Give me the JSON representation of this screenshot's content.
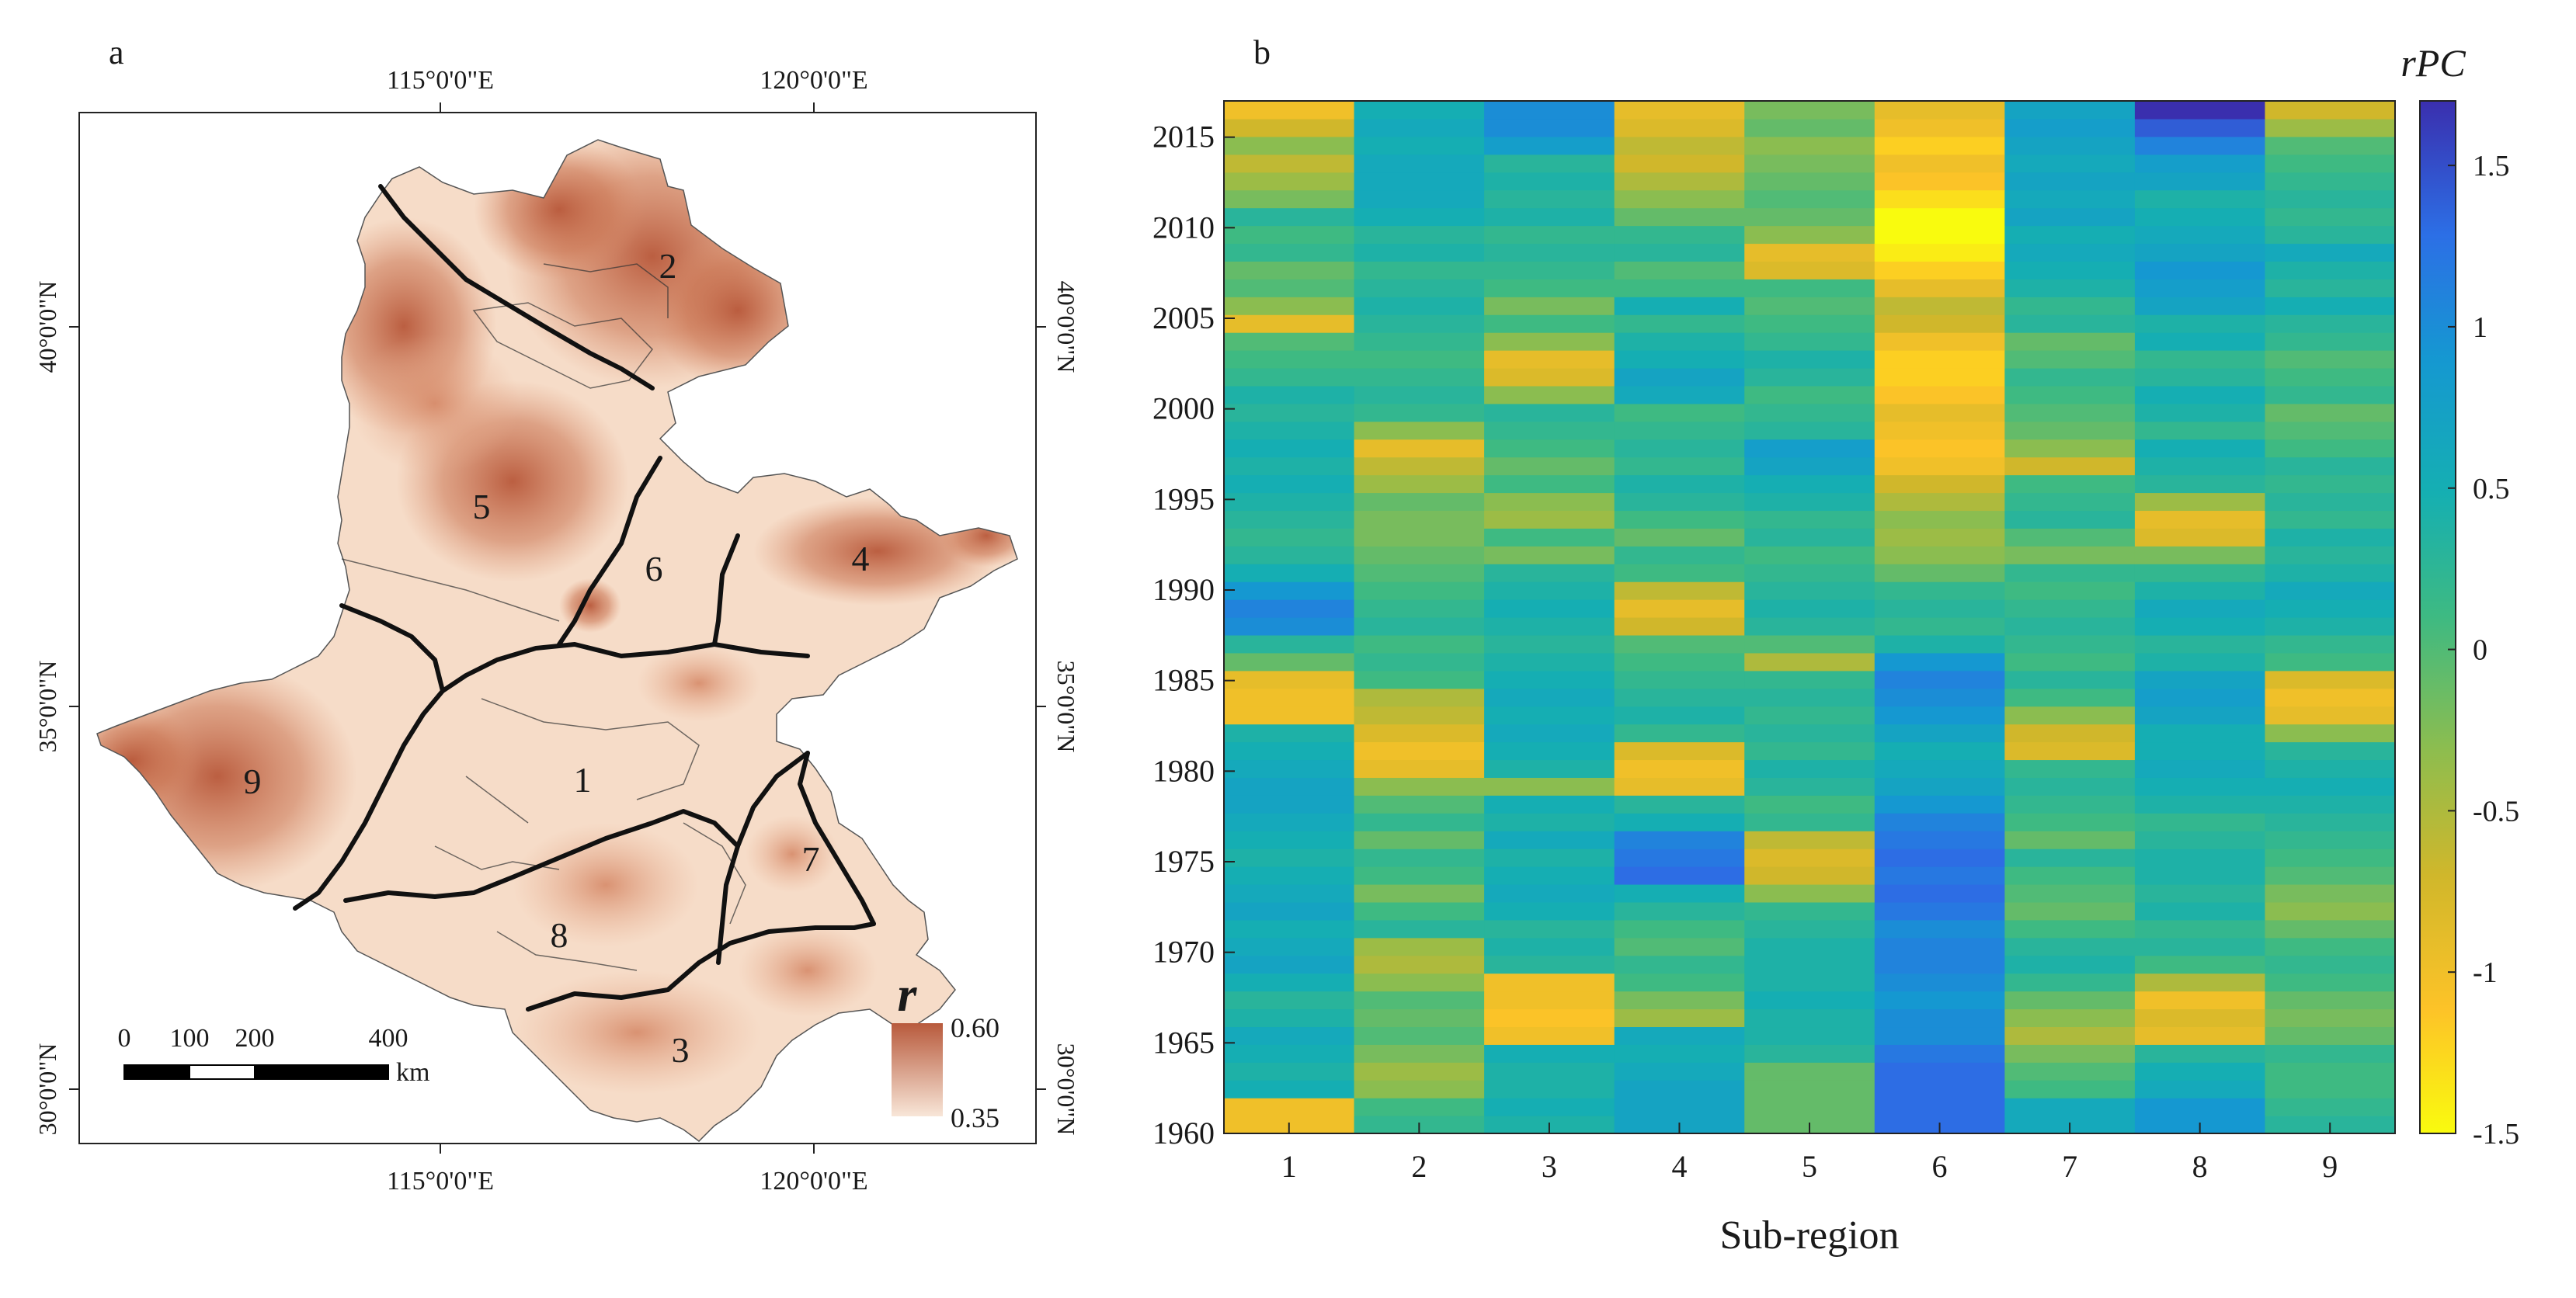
{
  "panel_a": {
    "label": "a",
    "top_lon_labels": [
      "115°0'0\"E",
      "120°0'0\"E"
    ],
    "bottom_lon_labels": [
      "115°0'0\"E",
      "120°0'0\"E"
    ],
    "left_lat_labels": [
      "40°0'0\"N",
      "35°0'0\"N",
      "30°0'0\"N"
    ],
    "right_lat_labels": [
      "40°0'0\"N",
      "35°0'0\"N",
      "30°0'0\"N"
    ],
    "region_labels": [
      "1",
      "2",
      "3",
      "4",
      "5",
      "6",
      "7",
      "8",
      "9"
    ],
    "scale_bar": {
      "ticks": [
        "0",
        "100",
        "200",
        "400"
      ],
      "unit": "km"
    },
    "legend": {
      "symbol": "r",
      "max": "0.60",
      "min": "0.35",
      "color_high": "#b85a3c",
      "color_low": "#f8e6d8"
    },
    "colors": {
      "land_light": "#f7dfcc",
      "land_dark": "#c46a4a",
      "boundary": "#111111"
    }
  },
  "panel_b": {
    "label": "b",
    "colorbar_title": "rPC",
    "xlabel": "Sub-region"
  },
  "chart_data": {
    "type": "heatmap",
    "title": "",
    "xlabel": "Sub-region",
    "ylabel": "",
    "x_categories": [
      "1",
      "2",
      "3",
      "4",
      "5",
      "6",
      "7",
      "8",
      "9"
    ],
    "y_range": [
      1960,
      2017
    ],
    "y_ticks": [
      "1960",
      "1965",
      "1970",
      "1975",
      "1980",
      "1985",
      "1990",
      "1995",
      "2000",
      "2005",
      "2010",
      "2015"
    ],
    "colorbar": {
      "label": "rPC",
      "range": [
        -1.5,
        1.7
      ],
      "ticks": [
        "1.5",
        "1",
        "0.5",
        "0",
        "-0.5",
        "-1",
        "-1.5"
      ],
      "colormap": "parula_reversed"
    },
    "values_note": "annual rPC values 1960-2017, rows are years (ascending), columns sub-regions 1-9",
    "values": [
      [
        -1.0,
        0.2,
        0.4,
        0.7,
        -0.1,
        1.3,
        0.6,
        0.9,
        0.3
      ],
      [
        -1.0,
        0.1,
        0.5,
        0.7,
        -0.1,
        1.3,
        0.6,
        0.9,
        0.2
      ],
      [
        0.5,
        -0.3,
        0.4,
        0.7,
        -0.1,
        1.3,
        0.1,
        0.6,
        0.1
      ],
      [
        0.4,
        -0.4,
        0.4,
        0.6,
        -0.1,
        1.3,
        0.0,
        0.5,
        0.1
      ],
      [
        0.5,
        -0.2,
        0.5,
        0.5,
        0.3,
        1.2,
        -0.2,
        0.3,
        0.2
      ],
      [
        0.6,
        0.0,
        -1.0,
        0.6,
        0.4,
        1.0,
        -0.5,
        -0.9,
        -0.1
      ],
      [
        0.4,
        -0.1,
        -1.1,
        -0.4,
        0.4,
        1.0,
        -0.3,
        -0.8,
        -0.2
      ],
      [
        0.3,
        0.0,
        -1.0,
        -0.2,
        0.5,
        0.9,
        -0.1,
        -1.0,
        -0.1
      ],
      [
        0.5,
        -0.3,
        -1.0,
        0.1,
        0.4,
        1.0,
        0.2,
        -0.5,
        0.1
      ],
      [
        0.7,
        -0.5,
        0.3,
        0.2,
        0.4,
        1.1,
        0.4,
        0.1,
        0.2
      ],
      [
        0.6,
        -0.4,
        0.4,
        0.0,
        0.4,
        1.1,
        0.3,
        0.3,
        0.1
      ],
      [
        0.5,
        0.3,
        0.3,
        0.1,
        0.3,
        1.0,
        0.1,
        0.2,
        -0.1
      ],
      [
        0.7,
        0.1,
        0.5,
        0.3,
        0.2,
        1.2,
        -0.1,
        0.4,
        -0.3
      ],
      [
        0.6,
        -0.2,
        0.6,
        0.5,
        -0.3,
        1.3,
        0.0,
        0.3,
        -0.2
      ],
      [
        0.5,
        0.1,
        0.5,
        1.3,
        -0.7,
        1.2,
        0.1,
        0.4,
        0.0
      ],
      [
        0.4,
        0.2,
        0.4,
        1.2,
        -0.8,
        1.3,
        0.3,
        0.4,
        0.1
      ],
      [
        0.5,
        -0.1,
        0.6,
        1.1,
        -0.6,
        1.2,
        -0.1,
        0.3,
        0.2
      ],
      [
        0.6,
        0.2,
        0.4,
        0.5,
        0.2,
        1.1,
        0.1,
        0.2,
        0.3
      ],
      [
        0.7,
        0.0,
        0.5,
        0.3,
        0.1,
        0.9,
        0.2,
        0.4,
        0.4
      ],
      [
        0.7,
        -0.3,
        -0.3,
        -0.9,
        0.3,
        0.7,
        0.3,
        0.5,
        0.5
      ],
      [
        0.6,
        -0.9,
        0.4,
        -1.0,
        0.4,
        0.6,
        0.2,
        0.6,
        0.4
      ],
      [
        0.5,
        -1.0,
        0.5,
        -0.8,
        0.2,
        0.5,
        -0.8,
        0.5,
        0.3
      ],
      [
        0.4,
        -0.8,
        0.6,
        0.2,
        0.3,
        0.7,
        -0.7,
        0.5,
        -0.3
      ],
      [
        -1.0,
        -0.6,
        0.5,
        0.4,
        0.2,
        0.9,
        -0.3,
        0.7,
        -0.9
      ],
      [
        -1.0,
        -0.5,
        0.6,
        0.3,
        0.3,
        1.0,
        0.1,
        0.8,
        -1.0
      ],
      [
        -0.9,
        0.1,
        0.5,
        0.2,
        0.2,
        1.1,
        0.3,
        0.7,
        -0.8
      ],
      [
        -0.1,
        0.2,
        0.4,
        0.1,
        -0.5,
        0.9,
        0.1,
        0.4,
        0.1
      ],
      [
        0.3,
        0.1,
        0.3,
        0.0,
        0.0,
        0.4,
        0.2,
        0.3,
        0.2
      ],
      [
        1.0,
        0.3,
        0.4,
        -0.7,
        0.3,
        0.2,
        0.3,
        0.5,
        0.4
      ],
      [
        1.1,
        0.2,
        0.5,
        -0.9,
        0.4,
        0.3,
        0.2,
        0.6,
        0.5
      ],
      [
        0.9,
        0.1,
        0.4,
        -0.6,
        0.3,
        0.2,
        0.1,
        0.4,
        0.6
      ],
      [
        0.5,
        0.0,
        0.3,
        0.1,
        0.2,
        -0.1,
        0.2,
        0.2,
        0.4
      ],
      [
        0.3,
        -0.1,
        -0.2,
        0.2,
        0.1,
        -0.3,
        -0.2,
        -0.2,
        0.3
      ],
      [
        0.2,
        -0.2,
        0.1,
        -0.1,
        0.3,
        -0.4,
        0.0,
        -0.8,
        0.4
      ],
      [
        0.3,
        -0.2,
        -0.4,
        0.1,
        0.2,
        -0.3,
        0.3,
        -0.9,
        0.2
      ],
      [
        0.4,
        -0.1,
        -0.3,
        0.3,
        0.4,
        -0.5,
        0.2,
        -0.4,
        0.3
      ],
      [
        0.5,
        -0.4,
        0.1,
        0.4,
        0.5,
        -0.7,
        0.1,
        0.3,
        0.2
      ],
      [
        0.4,
        -0.6,
        -0.1,
        0.2,
        0.7,
        -1.0,
        -0.7,
        0.4,
        0.3
      ],
      [
        0.5,
        -0.9,
        0.1,
        0.3,
        0.8,
        -1.1,
        -0.3,
        0.5,
        0.1
      ],
      [
        0.4,
        -0.3,
        0.2,
        0.2,
        0.3,
        -1.0,
        -0.1,
        0.2,
        0.0
      ],
      [
        0.3,
        0.2,
        0.3,
        0.1,
        0.2,
        -0.9,
        0.0,
        0.4,
        -0.1
      ],
      [
        0.4,
        0.3,
        -0.3,
        0.6,
        0.1,
        -1.1,
        0.1,
        0.5,
        0.2
      ],
      [
        0.2,
        0.2,
        -0.8,
        0.7,
        0.3,
        -1.2,
        0.2,
        0.3,
        0.1
      ],
      [
        0.1,
        0.1,
        -0.9,
        0.5,
        0.4,
        -1.2,
        0.0,
        0.2,
        0.0
      ],
      [
        0.0,
        0.2,
        -0.3,
        0.4,
        0.2,
        -1.0,
        -0.1,
        0.5,
        0.2
      ],
      [
        -0.9,
        0.3,
        0.1,
        0.2,
        0.1,
        -0.7,
        0.3,
        0.4,
        0.3
      ],
      [
        -0.3,
        0.4,
        -0.2,
        0.5,
        0.0,
        -0.6,
        0.2,
        0.7,
        0.5
      ],
      [
        0.0,
        0.3,
        0.1,
        0.1,
        0.1,
        -0.9,
        0.4,
        0.8,
        0.3
      ],
      [
        -0.1,
        0.2,
        0.2,
        0.0,
        -0.8,
        -1.2,
        0.5,
        0.9,
        0.4
      ],
      [
        0.2,
        0.4,
        0.3,
        0.3,
        -0.9,
        -1.4,
        0.6,
        0.7,
        0.6
      ],
      [
        0.1,
        0.3,
        0.2,
        0.2,
        -0.3,
        -1.5,
        0.5,
        0.6,
        0.3
      ],
      [
        0.3,
        0.5,
        0.4,
        -0.1,
        -0.1,
        -1.5,
        0.7,
        0.5,
        0.2
      ],
      [
        -0.2,
        0.6,
        0.3,
        -0.3,
        0.0,
        -1.3,
        0.6,
        0.4,
        0.3
      ],
      [
        -0.4,
        0.6,
        0.4,
        -0.5,
        -0.1,
        -1.1,
        0.7,
        0.7,
        0.2
      ],
      [
        -0.6,
        0.6,
        0.3,
        -0.7,
        -0.2,
        -1.0,
        0.6,
        0.8,
        0.1
      ],
      [
        -0.3,
        0.5,
        0.8,
        -0.6,
        -0.3,
        -1.2,
        0.7,
        1.1,
        0.0
      ],
      [
        -0.7,
        0.6,
        1.0,
        -0.8,
        -0.1,
        -1.0,
        0.8,
        1.4,
        -0.4
      ],
      [
        -1.0,
        0.5,
        1.0,
        -0.9,
        -0.2,
        -0.9,
        0.7,
        1.7,
        -0.7
      ]
    ]
  }
}
